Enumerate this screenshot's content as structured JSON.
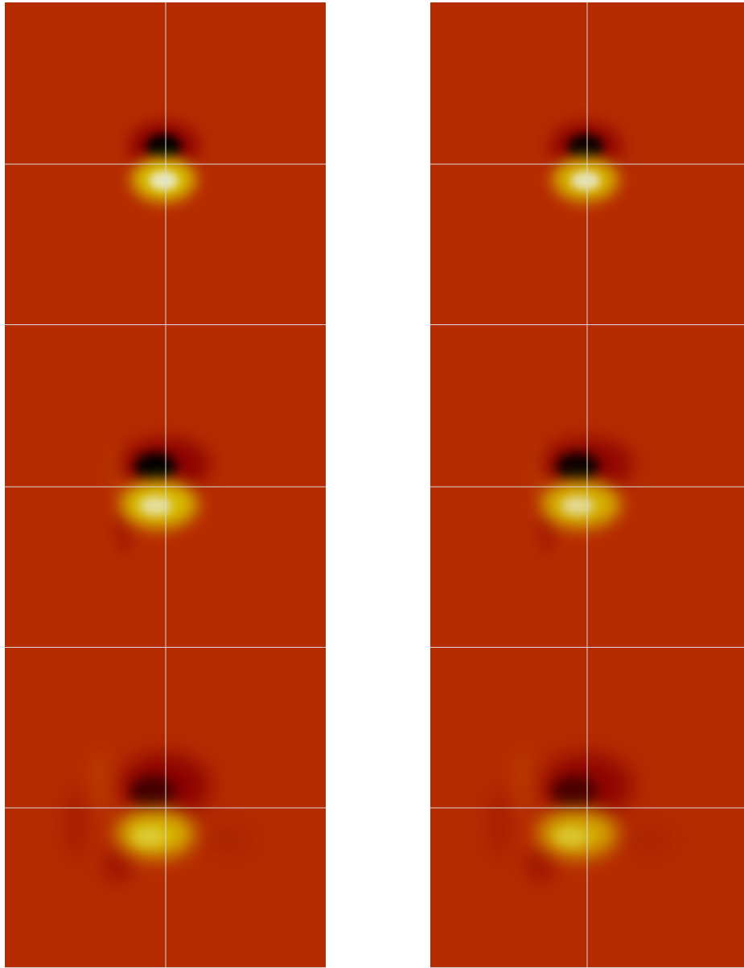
{
  "figure": {
    "background_color": "#b52c00",
    "crosshair_color": "#d9d9d9",
    "colormap": [
      "#000000",
      "#8a0000",
      "#b52c00",
      "#d9c200",
      "#e8e8c8"
    ],
    "columns": 2,
    "rows": 3,
    "panels": [
      {
        "id": "left-row1",
        "variant": 0,
        "stage": 0
      },
      {
        "id": "right-row1",
        "variant": 1,
        "stage": 0
      },
      {
        "id": "left-row2",
        "variant": 0,
        "stage": 1
      },
      {
        "id": "right-row2",
        "variant": 1,
        "stage": 1
      },
      {
        "id": "left-row3",
        "variant": 0,
        "stage": 2
      },
      {
        "id": "right-row3",
        "variant": 1,
        "stage": 2
      }
    ]
  }
}
